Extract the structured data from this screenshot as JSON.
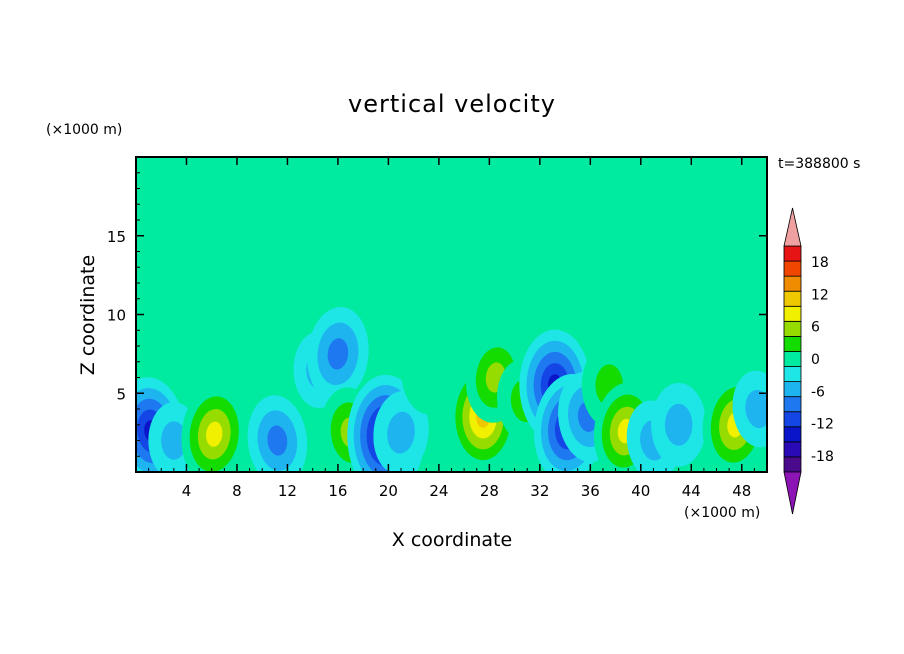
{
  "chart_data": {
    "type": "heatmap",
    "title": "vertical velocity",
    "xlabel": "X coordinate",
    "ylabel": "Z coordinate",
    "x_unit": "(×1000 m)",
    "y_unit": "(×1000 m)",
    "time_label": "t=388800 s",
    "xlim": [
      0,
      50
    ],
    "ylim": [
      0,
      20
    ],
    "x_ticks": [
      4,
      8,
      12,
      16,
      20,
      24,
      28,
      32,
      36,
      40,
      44,
      48
    ],
    "y_ticks": [
      5,
      10,
      15
    ],
    "colorbar": {
      "levels": [
        -21,
        -18,
        -15,
        -12,
        -9,
        -6,
        -3,
        0,
        3,
        6,
        9,
        12,
        15,
        18,
        21
      ],
      "labels": [
        18,
        12,
        6,
        0,
        -6,
        -12,
        -18
      ],
      "colors": [
        "#4b0a8c",
        "#2a0ab4",
        "#0a14c8",
        "#1446e6",
        "#1e78f0",
        "#1eb4f0",
        "#1ee6e6",
        "#00eba0",
        "#14dc00",
        "#96dc00",
        "#f0f000",
        "#f0c800",
        "#f08c00",
        "#f04600",
        "#e61414"
      ],
      "under_color": "#8c14b4",
      "over_color": "#f0a0a0"
    },
    "features": [
      {
        "x": 1.2,
        "z": 2.6,
        "w": -13
      },
      {
        "x": 3.0,
        "z": 2.0,
        "w": -4
      },
      {
        "x": 6.2,
        "z": 2.4,
        "w": 11
      },
      {
        "x": 11.2,
        "z": 2.0,
        "w": -8
      },
      {
        "x": 14.5,
        "z": 6.5,
        "w": -4
      },
      {
        "x": 16.0,
        "z": 7.5,
        "w": -9
      },
      {
        "x": 17.0,
        "z": 2.5,
        "w": 8
      },
      {
        "x": 19.8,
        "z": 2.3,
        "w": -17
      },
      {
        "x": 21.0,
        "z": 2.5,
        "w": -6
      },
      {
        "x": 23.0,
        "z": 6.0,
        "w": 3
      },
      {
        "x": 27.5,
        "z": 3.5,
        "w": 13
      },
      {
        "x": 28.5,
        "z": 6.0,
        "w": 8
      },
      {
        "x": 30.8,
        "z": 4.5,
        "w": 6
      },
      {
        "x": 33.2,
        "z": 5.5,
        "w": -14
      },
      {
        "x": 34.3,
        "z": 2.8,
        "w": -13
      },
      {
        "x": 35.8,
        "z": 3.5,
        "w": -8
      },
      {
        "x": 37.5,
        "z": 5.5,
        "w": 6
      },
      {
        "x": 38.8,
        "z": 2.6,
        "w": 10
      },
      {
        "x": 41.0,
        "z": 2.0,
        "w": -5
      },
      {
        "x": 43.0,
        "z": 3.0,
        "w": -6
      },
      {
        "x": 47.5,
        "z": 3.0,
        "w": 11
      },
      {
        "x": 49.3,
        "z": 4.0,
        "w": -4
      }
    ]
  }
}
